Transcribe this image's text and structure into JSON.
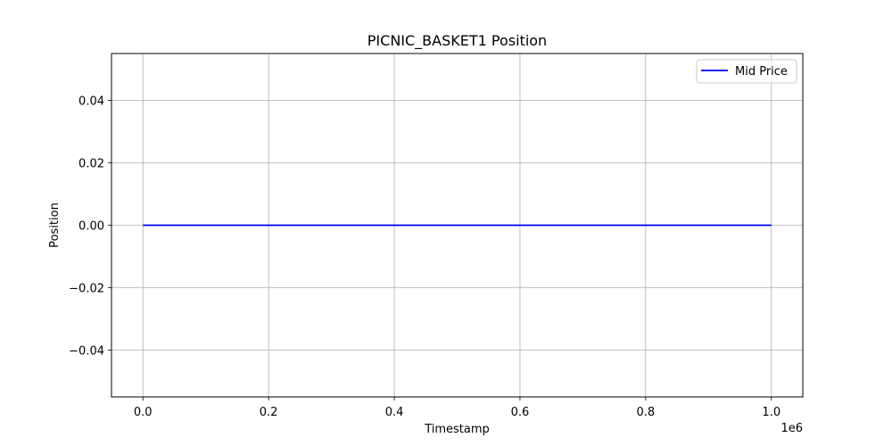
{
  "chart_data": {
    "type": "line",
    "title": "PICNIC_BASKET1 Position",
    "xlabel": "Timestamp",
    "ylabel": "Position",
    "x_offset_label": "1e6",
    "xlim": [
      -50000,
      1050000
    ],
    "ylim": [
      -0.055,
      0.055
    ],
    "x_ticks": [
      0,
      200000,
      400000,
      600000,
      800000,
      1000000
    ],
    "x_tick_labels": [
      "0.0",
      "0.2",
      "0.4",
      "0.6",
      "0.8",
      "1.0"
    ],
    "y_ticks": [
      0.04,
      0.02,
      0.0,
      -0.02,
      -0.04
    ],
    "y_tick_labels": [
      "0.04",
      "0.02",
      "0.00",
      "−0.02",
      "−0.04"
    ],
    "grid": true,
    "legend_position": "top-right",
    "series": [
      {
        "name": "Mid Price",
        "color": "#0000ff",
        "x": [
          0,
          1000000
        ],
        "y": [
          0,
          0
        ]
      }
    ]
  }
}
